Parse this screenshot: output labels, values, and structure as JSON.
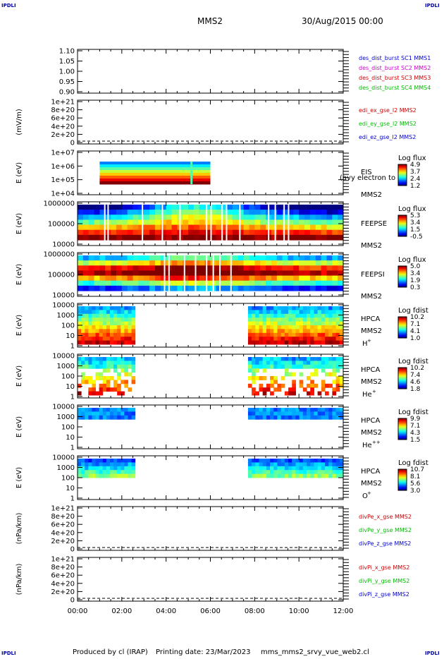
{
  "header": {
    "corner_label": "IPDLI",
    "spacecraft": "MMS2",
    "datetime": "30/Aug/2015 00:00"
  },
  "footer": {
    "produced_by": "Produced by  cl (IRAP)",
    "printing_date": "Printing date: 23/Mar/2023",
    "file_name": "mms_mms2_srvy_vue_web2.cl"
  },
  "chart_data": {
    "type": "line",
    "x_tick_labels": [
      "00:00",
      "02:00",
      "04:00",
      "06:00",
      "08:00",
      "10:00",
      "12:00"
    ],
    "x_range_hours": [
      0,
      12
    ],
    "panels": [
      {
        "kind": "line",
        "ylabel": "",
        "ytick_labels": [
          "1.10",
          "1.05",
          "1.00",
          "0.95",
          "0.90"
        ],
        "ylim": [
          0.9,
          1.1
        ],
        "legend": [
          {
            "label": "des_dist_burst SC1 MMS1",
            "color": "#0000cc"
          },
          {
            "label": "des_dist_burst SC2 MMS2",
            "color": "#cc00cc"
          },
          {
            "label": "des_dist_burst SC3 MMS3",
            "color": "#cc0000"
          },
          {
            "label": "des_dist_burst SC4 MMS4",
            "color": "#00bb00"
          }
        ]
      },
      {
        "kind": "line",
        "ylabel": "(mV/m)",
        "ytick_labels": [
          "1e+21",
          "8e+20",
          "6e+20",
          "4e+20",
          "2e+20",
          "0"
        ],
        "ylim": [
          0,
          1e+21
        ],
        "zero_dashed": true,
        "legend": [
          {
            "label": "edi_ex_gse_l2 MMS2",
            "color": "#cc0000"
          },
          {
            "label": "edi_ey_gse_l2 MMS2",
            "color": "#00bb00"
          },
          {
            "label": "edi_ez_gse_l2 MMS2",
            "color": "#0000cc"
          }
        ]
      },
      {
        "kind": "spec",
        "ylabel": "E (eV)",
        "ytick_labels": [
          "1e+07",
          "1e+06",
          "1e+05",
          "1e+04"
        ],
        "name_lines": [
          "EIS",
          "MMS2"
        ],
        "overlay_label": "(avy electron to",
        "cbar_title": "Log flux",
        "cbar_labels": [
          "4.9",
          "3.7",
          "2.4",
          "1.2"
        ],
        "coverage_hours": [
          [
            1.0,
            6.0
          ]
        ]
      },
      {
        "kind": "spec",
        "ylabel": "E (eV)",
        "ytick_labels": [
          "1000000",
          "100000",
          "10000"
        ],
        "name_lines": [
          "FEEPSE",
          "MMS2"
        ],
        "cbar_title": "Log flux",
        "cbar_labels": [
          "5.3",
          "3.4",
          "1.5",
          "-0.5"
        ],
        "coverage_hours": [
          [
            0.0,
            12.0
          ]
        ]
      },
      {
        "kind": "spec",
        "ylabel": "E (eV)",
        "ytick_labels": [
          "1000000",
          "100000",
          "10000"
        ],
        "name_lines": [
          "FEEPSI",
          "MMS2"
        ],
        "cbar_title": "Log flux",
        "cbar_labels": [
          "5.0",
          "3.4",
          "1.9",
          "0.3"
        ],
        "coverage_hours": [
          [
            0.0,
            12.0
          ]
        ]
      },
      {
        "kind": "spec",
        "ylabel": "E (eV)",
        "ytick_labels": [
          "10000",
          "1000",
          "100",
          "10",
          "1"
        ],
        "name_lines": [
          "HPCA",
          "MMS2"
        ],
        "species": "H",
        "species_sup": "+",
        "cbar_title": "Log fdist",
        "cbar_labels": [
          "10.2",
          "7.1",
          "4.1",
          "1.0"
        ],
        "coverage_hours": [
          [
            0.0,
            2.6
          ],
          [
            7.7,
            12.0
          ]
        ]
      },
      {
        "kind": "spec",
        "ylabel": "E (eV)",
        "ytick_labels": [
          "10000",
          "1000",
          "100",
          "10",
          "1"
        ],
        "name_lines": [
          "HPCA",
          "MMS2"
        ],
        "species": "He",
        "species_sup": "+",
        "cbar_title": "Log fdist",
        "cbar_labels": [
          "10.2",
          "7.4",
          "4.6",
          "1.8"
        ],
        "coverage_hours": [
          [
            0.0,
            2.6
          ],
          [
            7.7,
            12.0
          ]
        ]
      },
      {
        "kind": "spec",
        "ylabel": "E (eV)",
        "ytick_labels": [
          "10000",
          "1000",
          "100",
          "10",
          "1"
        ],
        "name_lines": [
          "HPCA",
          "MMS2"
        ],
        "species": "He",
        "species_sup": "++",
        "cbar_title": "Log fdist",
        "cbar_labels": [
          "9.9",
          "7.1",
          "4.3",
          "1.5"
        ],
        "coverage_hours": [
          [
            0.0,
            2.6
          ],
          [
            7.7,
            12.0
          ]
        ]
      },
      {
        "kind": "spec",
        "ylabel": "E (eV)",
        "ytick_labels": [
          "10000",
          "1000",
          "100",
          "10",
          "1"
        ],
        "name_lines": [
          "HPCA",
          "MMS2"
        ],
        "species": "O",
        "species_sup": "+",
        "cbar_title": "Log fdist",
        "cbar_labels": [
          "10.7",
          "8.1",
          "5.6",
          "3.0"
        ],
        "coverage_hours": [
          [
            0.0,
            2.6
          ],
          [
            7.7,
            12.0
          ]
        ]
      },
      {
        "kind": "line",
        "ylabel": "(nPa/km)",
        "ytick_labels": [
          "1e+21",
          "8e+20",
          "6e+20",
          "4e+20",
          "2e+20",
          "0"
        ],
        "ylim": [
          0,
          1e+21
        ],
        "zero_dashed": true,
        "legend": [
          {
            "label": "divPe_x_gse MMS2",
            "color": "#cc0000"
          },
          {
            "label": "divPe_y_gse MMS2",
            "color": "#00bb00"
          },
          {
            "label": "divPe_z_gse MMS2",
            "color": "#0000cc"
          }
        ]
      },
      {
        "kind": "line",
        "ylabel": "(nPa/km)",
        "ytick_labels": [
          "1e+21",
          "8e+20",
          "6e+20",
          "4e+20",
          "2e+20",
          "0"
        ],
        "ylim": [
          0,
          1e+21
        ],
        "zero_dashed": true,
        "legend": [
          {
            "label": "divPi_x_gse MMS2",
            "color": "#cc0000"
          },
          {
            "label": "divPi_y_gse MMS2",
            "color": "#00bb00"
          },
          {
            "label": "divPi_z_gse MMS2",
            "color": "#0000cc"
          }
        ]
      }
    ]
  }
}
